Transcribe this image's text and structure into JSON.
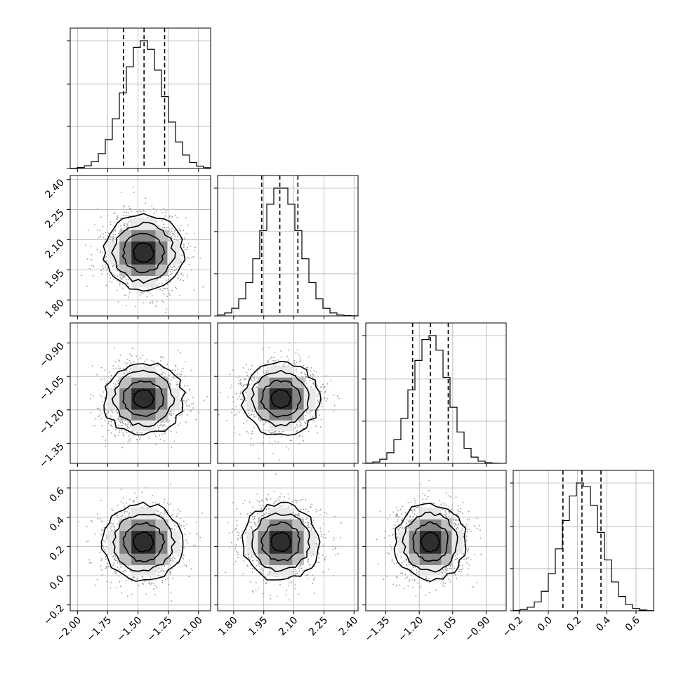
{
  "chart_data": {
    "type": "corner",
    "parameters": [
      {
        "range": [
          -2.06,
          -0.9
        ],
        "mean": -1.455,
        "std": 0.165,
        "quantiles": [
          -1.62,
          -1.45,
          -1.28
        ],
        "ticks": [
          -2.0,
          -1.75,
          -1.5,
          -1.25,
          -1.0
        ],
        "tick_labels": [
          "−2.00",
          "−1.75",
          "−1.50",
          "−1.25",
          "−1.00"
        ]
      },
      {
        "range": [
          1.72,
          2.42
        ],
        "mean": 2.035,
        "std": 0.095,
        "quantiles": [
          1.94,
          2.03,
          2.12
        ],
        "ticks": [
          1.8,
          1.95,
          2.1,
          2.25,
          2.4
        ],
        "tick_labels": [
          "1.80",
          "1.95",
          "2.10",
          "2.25",
          "2.40"
        ]
      },
      {
        "range": [
          -1.44,
          -0.81
        ],
        "mean": -1.15,
        "std": 0.08,
        "quantiles": [
          -1.23,
          -1.15,
          -1.07
        ],
        "ticks": [
          -1.35,
          -1.2,
          -1.05,
          -0.9
        ],
        "tick_labels": [
          "−1.35",
          "−1.20",
          "−1.05",
          "−0.90"
        ]
      },
      {
        "range": [
          -0.24,
          0.72
        ],
        "mean": 0.23,
        "std": 0.13,
        "quantiles": [
          0.1,
          0.23,
          0.36
        ],
        "ticks": [
          -0.2,
          0.0,
          0.2,
          0.4,
          0.6
        ],
        "tick_labels": [
          "−0.2",
          "0.0",
          "0.2",
          "0.4",
          "0.6"
        ]
      }
    ],
    "correlations": [
      [
        1,
        0,
        0,
        0
      ],
      [
        0,
        1,
        0,
        0
      ],
      [
        0,
        0,
        1,
        0
      ],
      [
        0,
        0,
        0,
        1
      ]
    ],
    "histogram_bins": 20,
    "contour_levels_sigma": [
      0.5,
      1.0,
      1.5,
      2.0
    ],
    "grid": true,
    "colors": {
      "line": "#000000",
      "points": "#9a9a9a",
      "grid": "#b0b0b0",
      "density_max": "#000000"
    }
  }
}
